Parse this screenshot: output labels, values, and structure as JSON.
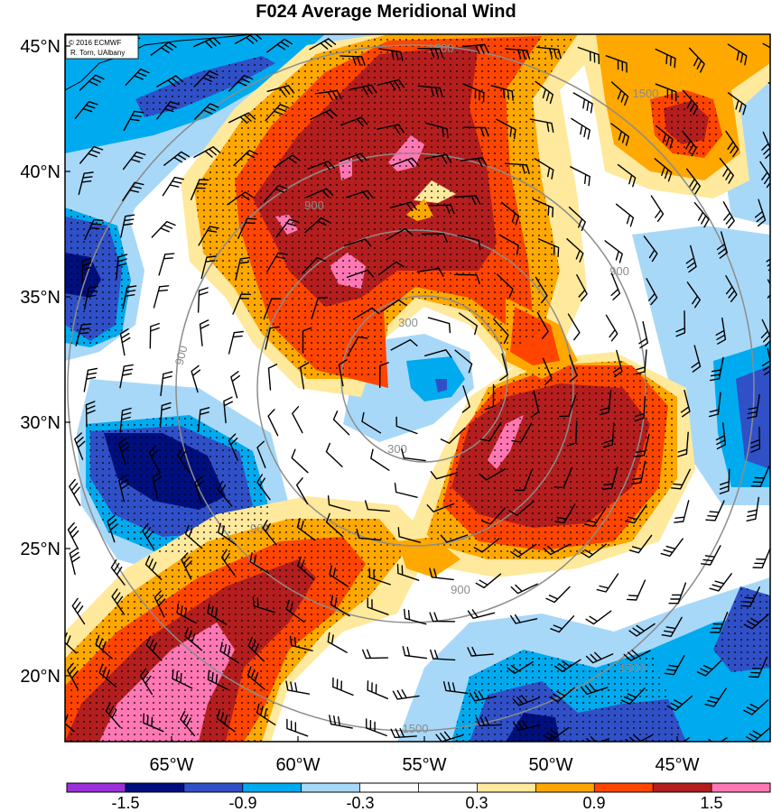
{
  "title": "F024 Average Meridional Wind",
  "credit": {
    "line1": "© 2016 ECMWF",
    "line2": "R. Torn, UAlbany"
  },
  "latitude_labels": [
    "45°N",
    "40°N",
    "35°N",
    "30°N",
    "25°N",
    "20°N"
  ],
  "longitude_labels": [
    "65°W",
    "60°W",
    "55°W",
    "50°W",
    "45°W"
  ],
  "ring_labels": [
    "300",
    "300",
    "900",
    "900",
    "900",
    "900",
    "900",
    "1500",
    "1500",
    "1500",
    "1500"
  ],
  "colorbar": {
    "tick_labels": [
      "-1.5",
      "-0.9",
      "-0.3",
      "0.3",
      "0.9",
      "1.5"
    ],
    "colors": [
      "#9b30d9",
      "#000f7e",
      "#3050c8",
      "#00aaee",
      "#a8d8f8",
      "#ffffff",
      "#ffffff",
      "#ffe99c",
      "#ffa800",
      "#ff4500",
      "#b41e1e",
      "#ff78b4"
    ]
  },
  "colors": {
    "strong_positive": "#b41e1e",
    "positive": "#ff4500",
    "weak_positive": "#ffa800",
    "slight_positive": "#ffe99c",
    "slight_negative": "#a8d8f8",
    "weak_negative": "#00aaee",
    "negative": "#3050c8",
    "strong_negative": "#000f7e",
    "extreme_positive": "#ff78b4",
    "range_rings": "#8c8c8c",
    "wind_barbs": "#000000"
  }
}
